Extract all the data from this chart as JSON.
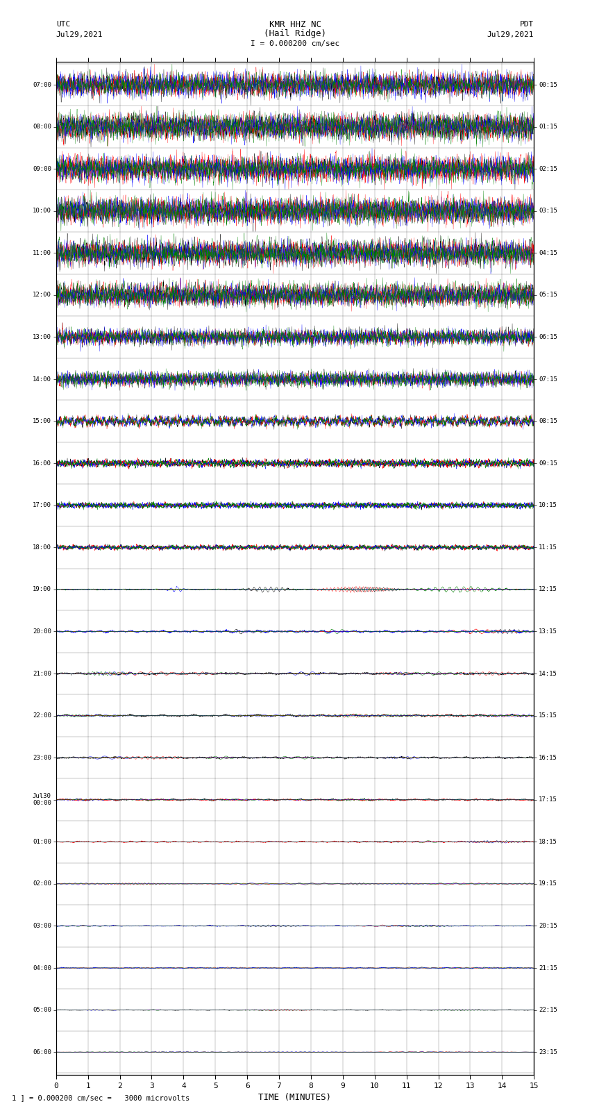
{
  "title_line1": "KMR HHZ NC",
  "title_line2": "(Hail Ridge)",
  "scale_label": "I = 0.000200 cm/sec",
  "left_date": "Jul29,2021",
  "right_date": "Jul29,2021",
  "left_tz": "UTC",
  "right_tz": "PDT",
  "bottom_label": "TIME (MINUTES)",
  "scale_note": "1 ] = 0.000200 cm/sec =   3000 microvolts",
  "utc_times": [
    "07:00",
    "08:00",
    "09:00",
    "10:00",
    "11:00",
    "12:00",
    "13:00",
    "14:00",
    "15:00",
    "16:00",
    "17:00",
    "18:00",
    "19:00",
    "20:00",
    "21:00",
    "22:00",
    "23:00",
    "Jul30\n00:00",
    "01:00",
    "02:00",
    "03:00",
    "04:00",
    "05:00",
    "06:00"
  ],
  "pdt_times": [
    "00:15",
    "01:15",
    "02:15",
    "03:15",
    "04:15",
    "05:15",
    "06:15",
    "07:15",
    "08:15",
    "09:15",
    "10:15",
    "11:15",
    "12:15",
    "13:15",
    "14:15",
    "15:15",
    "16:15",
    "17:15",
    "18:15",
    "19:15",
    "20:15",
    "21:15",
    "22:15",
    "23:15"
  ],
  "n_rows": 24,
  "minutes": 15,
  "bg_color": "#ffffff",
  "colors_cycle": [
    "#000000",
    "#ff0000",
    "#0000ff",
    "#008000"
  ],
  "row_amplitude_scale": [
    1.0,
    1.0,
    1.0,
    1.0,
    1.0,
    0.85,
    0.7,
    0.55,
    0.4,
    0.28,
    0.22,
    0.18,
    0.15,
    0.12,
    0.1,
    0.09,
    0.08,
    0.07,
    0.06,
    0.055,
    0.05,
    0.045,
    0.035,
    0.025
  ],
  "row_noise_scale": [
    1.0,
    1.0,
    1.0,
    1.0,
    0.95,
    0.8,
    0.65,
    0.5,
    0.35,
    0.25,
    0.2,
    0.16,
    0.13,
    0.11,
    0.09,
    0.08,
    0.07,
    0.06,
    0.055,
    0.05,
    0.045,
    0.04,
    0.032,
    0.022
  ],
  "random_seed": 12345
}
